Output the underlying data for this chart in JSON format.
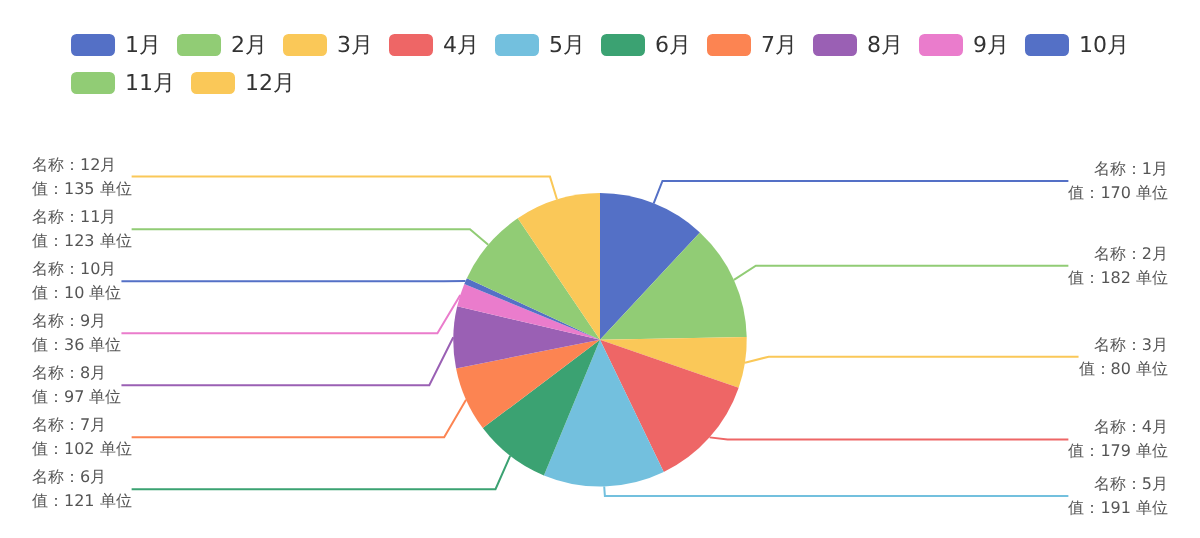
{
  "chart_data": {
    "type": "pie",
    "legend": "top",
    "categories": [
      "1月",
      "2月",
      "3月",
      "4月",
      "5月",
      "6月",
      "7月",
      "8月",
      "9月",
      "10月",
      "11月",
      "12月"
    ],
    "values": [
      170,
      182,
      80,
      179,
      191,
      121,
      102,
      97,
      36,
      10,
      123,
      135
    ],
    "colors": [
      "#5470c6",
      "#91cc75",
      "#fac858",
      "#ee6666",
      "#73c0de",
      "#3ba272",
      "#fc8452",
      "#9a60b4",
      "#ea7ccc",
      "#5470c6",
      "#91cc75",
      "#fac858"
    ],
    "value_labels": [
      "名称：1月值：170 单位",
      "名称：2月值：182 单位",
      "名称：3月值：80 单位",
      "名称：4月值：179 单位",
      "名称：5月值：191 单位",
      "名称：6月值：121 单位",
      "名称：7月值：102 单位",
      "名称：8月值：97 单位",
      "名称：9月值：36 单位",
      "名称：10月值：10 单位",
      "名称：11月值：123 单位",
      "名称：12月值：135 单位"
    ]
  }
}
